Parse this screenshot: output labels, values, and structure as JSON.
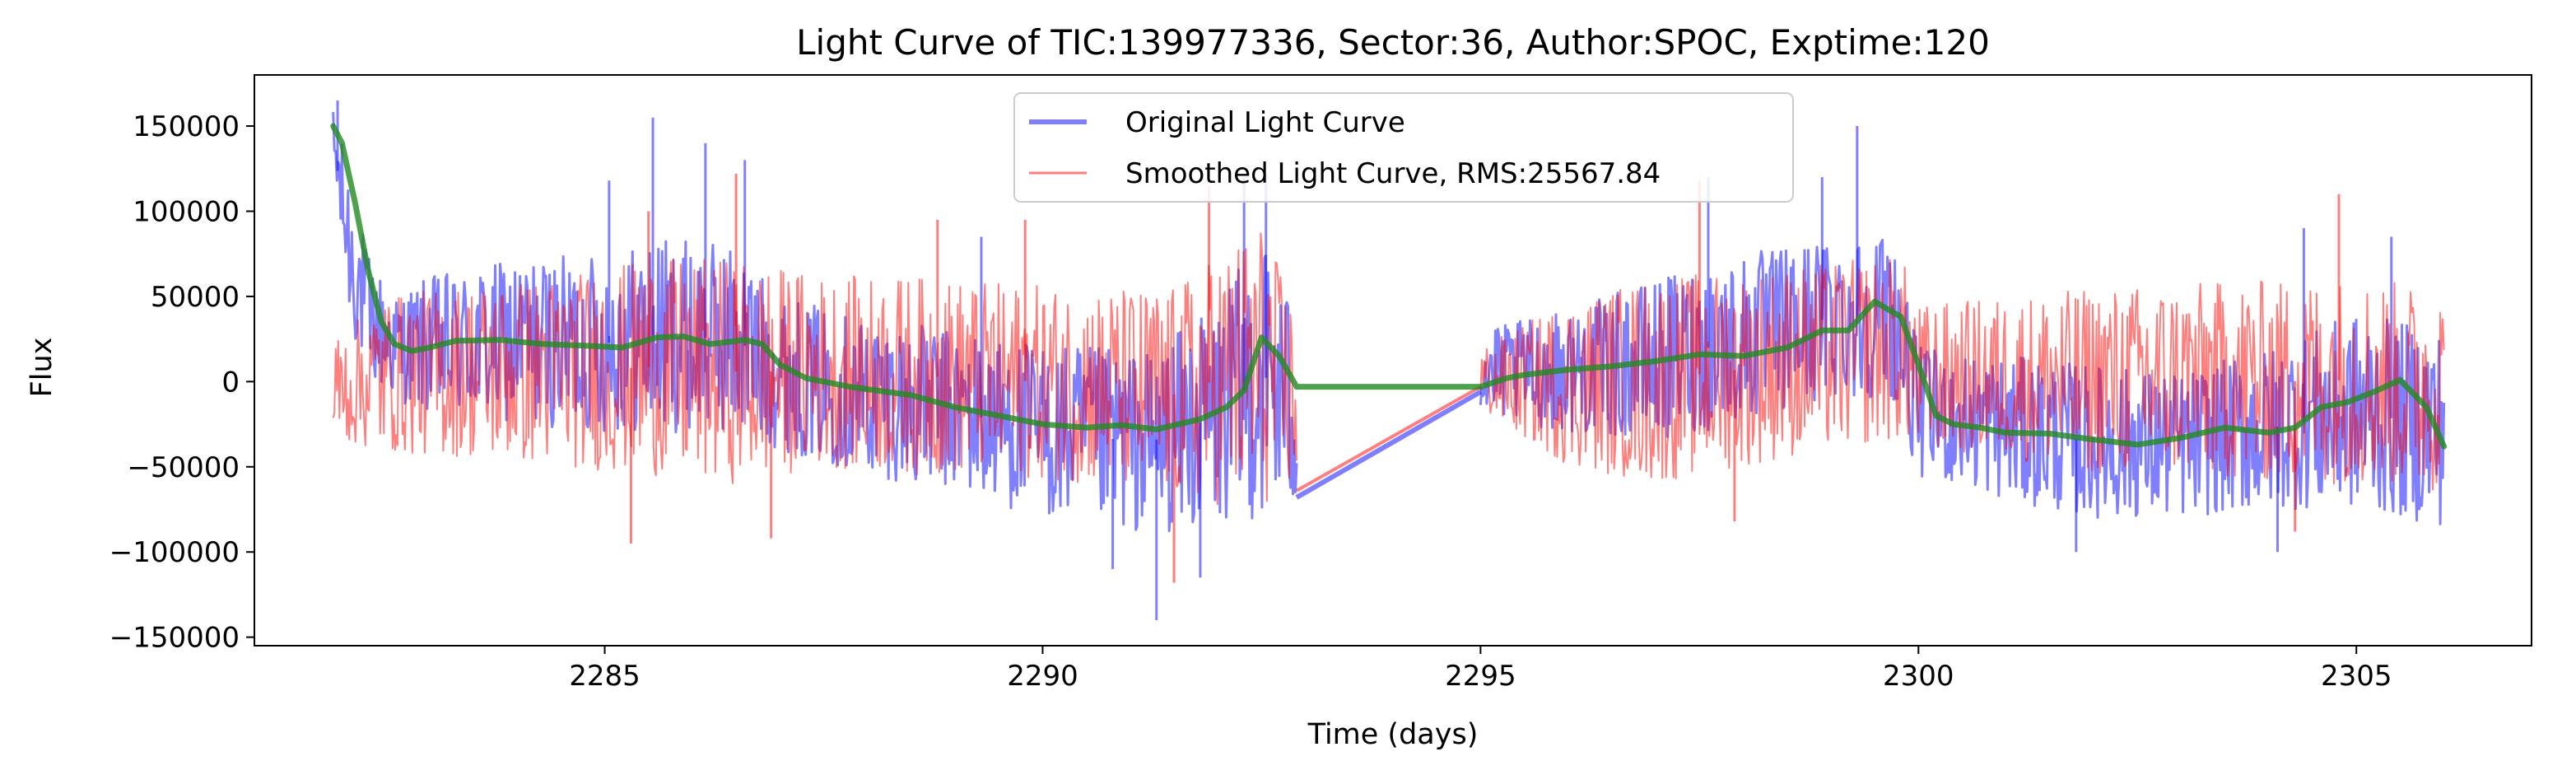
{
  "chart_data": {
    "type": "line",
    "title": "Light Curve of TIC:139977336, Sector:36, Author:SPOC, Exptime:120",
    "xlabel": "Time (days)",
    "ylabel": "Flux",
    "xlim": [
      2281,
      2307
    ],
    "ylim": [
      -155000,
      180000
    ],
    "xticks": [
      2285,
      2290,
      2295,
      2300,
      2305
    ],
    "yticks": [
      -150000,
      -100000,
      -50000,
      0,
      50000,
      100000,
      150000
    ],
    "ytick_labels": [
      "−150000",
      "−100000",
      "−50000",
      "0",
      "50000",
      "100000",
      "150000"
    ],
    "grid": false,
    "legend_position": "top-center",
    "gap": [
      2292.9,
      2295.0
    ],
    "series": [
      {
        "name": "Original Light Curve",
        "color": "#0000ff",
        "opacity": 0.5,
        "envelope": [
          {
            "x": 2281.9,
            "upper": 160000,
            "lower": 120000
          },
          {
            "x": 2282.1,
            "upper": 120000,
            "lower": 30000
          },
          {
            "x": 2282.3,
            "upper": 75000,
            "lower": 0
          },
          {
            "x": 2282.6,
            "upper": 50000,
            "lower": -10000
          },
          {
            "x": 2283.0,
            "upper": 62000,
            "lower": -20000
          },
          {
            "x": 2284.0,
            "upper": 72000,
            "lower": -25000
          },
          {
            "x": 2285.0,
            "upper": 75000,
            "lower": -30000
          },
          {
            "x": 2285.6,
            "upper": 85000,
            "lower": -30000
          },
          {
            "x": 2286.5,
            "upper": 80000,
            "lower": -30000
          },
          {
            "x": 2287.0,
            "upper": 50000,
            "lower": -40000
          },
          {
            "x": 2288.0,
            "upper": 38000,
            "lower": -55000
          },
          {
            "x": 2289.0,
            "upper": 30000,
            "lower": -65000
          },
          {
            "x": 2290.0,
            "upper": 22000,
            "lower": -80000
          },
          {
            "x": 2291.2,
            "upper": 18000,
            "lower": -90000
          },
          {
            "x": 2292.0,
            "upper": 45000,
            "lower": -85000
          },
          {
            "x": 2292.5,
            "upper": 90000,
            "lower": -80000
          },
          {
            "x": 2292.9,
            "upper": 40000,
            "lower": -75000
          },
          {
            "x": 2295.0,
            "upper": 30000,
            "lower": -20000
          },
          {
            "x": 2296.0,
            "upper": 42000,
            "lower": -30000
          },
          {
            "x": 2297.0,
            "upper": 60000,
            "lower": -35000
          },
          {
            "x": 2298.0,
            "upper": 75000,
            "lower": -25000
          },
          {
            "x": 2299.0,
            "upper": 85000,
            "lower": -10000
          },
          {
            "x": 2299.7,
            "upper": 90000,
            "lower": -10000
          },
          {
            "x": 2300.0,
            "upper": 20000,
            "lower": -55000
          },
          {
            "x": 2301.0,
            "upper": 15000,
            "lower": -70000
          },
          {
            "x": 2302.0,
            "upper": 10000,
            "lower": -80000
          },
          {
            "x": 2303.0,
            "upper": 5000,
            "lower": -80000
          },
          {
            "x": 2304.0,
            "upper": 20000,
            "lower": -75000
          },
          {
            "x": 2305.0,
            "upper": 40000,
            "lower": -75000
          },
          {
            "x": 2306.0,
            "upper": 30000,
            "lower": -85000
          }
        ],
        "segment_points": [
          {
            "x": 2292.9,
            "y": -68000
          },
          {
            "x": 2295.0,
            "y": -6000
          }
        ],
        "spikes": [
          {
            "x": 2281.95,
            "y": 165000
          },
          {
            "x": 2285.05,
            "y": 118000
          },
          {
            "x": 2285.55,
            "y": 155000
          },
          {
            "x": 2286.15,
            "y": 140000
          },
          {
            "x": 2286.6,
            "y": 130000
          },
          {
            "x": 2289.3,
            "y": 85000
          },
          {
            "x": 2291.3,
            "y": -140000
          },
          {
            "x": 2290.8,
            "y": -110000
          },
          {
            "x": 2291.8,
            "y": -115000
          },
          {
            "x": 2292.3,
            "y": 120000
          },
          {
            "x": 2292.55,
            "y": 122000
          },
          {
            "x": 2297.6,
            "y": 120000
          },
          {
            "x": 2299.3,
            "y": 150000
          },
          {
            "x": 2298.9,
            "y": 120000
          },
          {
            "x": 2301.8,
            "y": -100000
          },
          {
            "x": 2304.1,
            "y": -100000
          },
          {
            "x": 2305.4,
            "y": 85000
          },
          {
            "x": 2304.4,
            "y": 90000
          }
        ]
      },
      {
        "name": "Smoothed Light Curve, RMS:25567.84",
        "color": "#ff0000",
        "opacity": 0.5,
        "envelope": [
          {
            "x": 2281.9,
            "upper": 25000,
            "lower": -35000
          },
          {
            "x": 2282.5,
            "upper": 50000,
            "lower": -42000
          },
          {
            "x": 2283.5,
            "upper": 58000,
            "lower": -45000
          },
          {
            "x": 2284.5,
            "upper": 62000,
            "lower": -50000
          },
          {
            "x": 2285.5,
            "upper": 72000,
            "lower": -55000
          },
          {
            "x": 2286.5,
            "upper": 72000,
            "lower": -60000
          },
          {
            "x": 2287.5,
            "upper": 62000,
            "lower": -50000
          },
          {
            "x": 2288.5,
            "upper": 62000,
            "lower": -55000
          },
          {
            "x": 2289.5,
            "upper": 58000,
            "lower": -55000
          },
          {
            "x": 2290.5,
            "upper": 55000,
            "lower": -60000
          },
          {
            "x": 2291.5,
            "upper": 55000,
            "lower": -70000
          },
          {
            "x": 2292.5,
            "upper": 95000,
            "lower": -75000
          },
          {
            "x": 2292.9,
            "upper": 40000,
            "lower": -62000
          },
          {
            "x": 2295.0,
            "upper": 20000,
            "lower": -18000
          },
          {
            "x": 2296.0,
            "upper": 48000,
            "lower": -50000
          },
          {
            "x": 2297.0,
            "upper": 62000,
            "lower": -60000
          },
          {
            "x": 2298.0,
            "upper": 65000,
            "lower": -50000
          },
          {
            "x": 2299.0,
            "upper": 70000,
            "lower": -40000
          },
          {
            "x": 2299.8,
            "upper": 75000,
            "lower": -35000
          },
          {
            "x": 2300.0,
            "upper": 45000,
            "lower": -40000
          },
          {
            "x": 2301.0,
            "upper": 50000,
            "lower": -45000
          },
          {
            "x": 2302.0,
            "upper": 55000,
            "lower": -55000
          },
          {
            "x": 2303.0,
            "upper": 58000,
            "lower": -55000
          },
          {
            "x": 2304.0,
            "upper": 60000,
            "lower": -60000
          },
          {
            "x": 2305.0,
            "upper": 62000,
            "lower": -60000
          },
          {
            "x": 2306.0,
            "upper": 55000,
            "lower": -65000
          }
        ],
        "segment_points": [
          {
            "x": 2292.9,
            "y": -64000
          },
          {
            "x": 2295.0,
            "y": -3000
          }
        ],
        "spikes": [
          {
            "x": 2286.5,
            "y": 122000
          },
          {
            "x": 2285.5,
            "y": 100000
          },
          {
            "x": 2289.8,
            "y": 95000
          },
          {
            "x": 2288.8,
            "y": 95000
          },
          {
            "x": 2291.9,
            "y": 115000
          },
          {
            "x": 2297.5,
            "y": 118000
          },
          {
            "x": 2304.8,
            "y": 110000
          },
          {
            "x": 2285.3,
            "y": -95000
          },
          {
            "x": 2286.9,
            "y": -92000
          },
          {
            "x": 2291.5,
            "y": -118000
          },
          {
            "x": 2297.9,
            "y": -82000
          },
          {
            "x": 2304.3,
            "y": -88000
          }
        ]
      },
      {
        "name": "",
        "color": "#228b22",
        "opacity": 0.8,
        "points": [
          {
            "x": 2281.9,
            "y": 150000
          },
          {
            "x": 2282.0,
            "y": 140000
          },
          {
            "x": 2282.15,
            "y": 105000
          },
          {
            "x": 2282.3,
            "y": 65000
          },
          {
            "x": 2282.45,
            "y": 35000
          },
          {
            "x": 2282.6,
            "y": 22000
          },
          {
            "x": 2282.8,
            "y": 18000
          },
          {
            "x": 2283.0,
            "y": 20000
          },
          {
            "x": 2283.3,
            "y": 24000
          },
          {
            "x": 2283.8,
            "y": 24500
          },
          {
            "x": 2284.3,
            "y": 22000
          },
          {
            "x": 2284.8,
            "y": 21000
          },
          {
            "x": 2285.2,
            "y": 20000
          },
          {
            "x": 2285.6,
            "y": 26000
          },
          {
            "x": 2285.9,
            "y": 26500
          },
          {
            "x": 2286.2,
            "y": 22000
          },
          {
            "x": 2286.6,
            "y": 24500
          },
          {
            "x": 2286.8,
            "y": 22000
          },
          {
            "x": 2287.0,
            "y": 10000
          },
          {
            "x": 2287.3,
            "y": 2000
          },
          {
            "x": 2287.8,
            "y": -3000
          },
          {
            "x": 2288.5,
            "y": -8000
          },
          {
            "x": 2289.0,
            "y": -15000
          },
          {
            "x": 2289.5,
            "y": -20000
          },
          {
            "x": 2290.0,
            "y": -25000
          },
          {
            "x": 2290.5,
            "y": -27000
          },
          {
            "x": 2290.9,
            "y": -25500
          },
          {
            "x": 2291.3,
            "y": -28000
          },
          {
            "x": 2291.8,
            "y": -22000
          },
          {
            "x": 2292.1,
            "y": -15000
          },
          {
            "x": 2292.3,
            "y": -5000
          },
          {
            "x": 2292.5,
            "y": 26000
          },
          {
            "x": 2292.7,
            "y": 15000
          },
          {
            "x": 2292.9,
            "y": -3000
          },
          {
            "x": 2295.0,
            "y": -3000
          },
          {
            "x": 2295.3,
            "y": 2000
          },
          {
            "x": 2295.5,
            "y": 4000
          },
          {
            "x": 2296.0,
            "y": 7000
          },
          {
            "x": 2296.5,
            "y": 9000
          },
          {
            "x": 2297.0,
            "y": 12000
          },
          {
            "x": 2297.5,
            "y": 16000
          },
          {
            "x": 2298.0,
            "y": 15000
          },
          {
            "x": 2298.5,
            "y": 20000
          },
          {
            "x": 2298.9,
            "y": 30000
          },
          {
            "x": 2299.2,
            "y": 30000
          },
          {
            "x": 2299.5,
            "y": 47000
          },
          {
            "x": 2299.8,
            "y": 38000
          },
          {
            "x": 2300.0,
            "y": 10000
          },
          {
            "x": 2300.2,
            "y": -20000
          },
          {
            "x": 2300.4,
            "y": -25000
          },
          {
            "x": 2300.7,
            "y": -27000
          },
          {
            "x": 2301.0,
            "y": -30000
          },
          {
            "x": 2301.5,
            "y": -30500
          },
          {
            "x": 2302.0,
            "y": -34000
          },
          {
            "x": 2302.5,
            "y": -37000
          },
          {
            "x": 2303.0,
            "y": -33000
          },
          {
            "x": 2303.5,
            "y": -27000
          },
          {
            "x": 2304.0,
            "y": -30000
          },
          {
            "x": 2304.3,
            "y": -27000
          },
          {
            "x": 2304.6,
            "y": -15000
          },
          {
            "x": 2304.9,
            "y": -12000
          },
          {
            "x": 2305.2,
            "y": -6000
          },
          {
            "x": 2305.5,
            "y": 1000
          },
          {
            "x": 2305.8,
            "y": -15000
          },
          {
            "x": 2306.0,
            "y": -38000
          }
        ]
      }
    ]
  }
}
